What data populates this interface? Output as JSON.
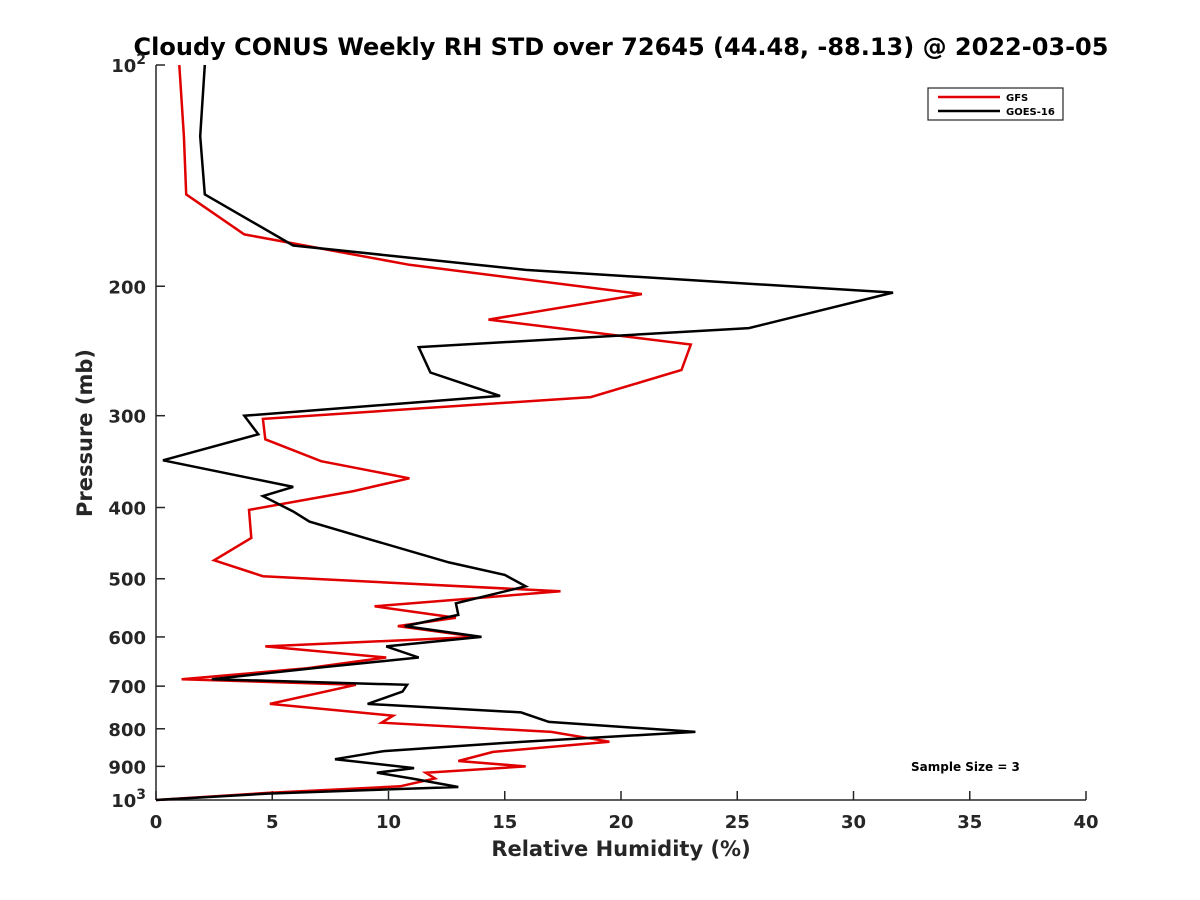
{
  "chart_data": {
    "type": "line",
    "title": "Cloudy CONUS Weekly RH STD over 72645 (44.48, -88.13) @ 2022-03-05",
    "xlabel": "Relative Humidity (%)",
    "ylabel": "Pressure (mb)",
    "xlim": [
      0,
      40
    ],
    "ylim": [
      100,
      1000
    ],
    "y_scale": "log",
    "y_reversed": true,
    "x_ticks": [
      "0",
      "5",
      "10",
      "15",
      "20",
      "25",
      "30",
      "35",
      "40"
    ],
    "y_ticks": [
      {
        "value": 100,
        "base": "10",
        "exp": "2"
      },
      {
        "value": 200,
        "label": "200"
      },
      {
        "value": 300,
        "label": "300"
      },
      {
        "value": 400,
        "label": "400"
      },
      {
        "value": 500,
        "label": "500"
      },
      {
        "value": 600,
        "label": "600"
      },
      {
        "value": 700,
        "label": "700"
      },
      {
        "value": 800,
        "label": "800"
      },
      {
        "value": 900,
        "label": "900"
      },
      {
        "value": 1000,
        "base": "10",
        "exp": "3"
      }
    ],
    "legend_position": "top-right",
    "grid": false,
    "annotation": "Sample Size = 3",
    "series": [
      {
        "name": "GFS",
        "color": "#e00000",
        "points": [
          [
            1.0,
            100
          ],
          [
            1.2,
            125
          ],
          [
            1.3,
            150
          ],
          [
            3.8,
            170
          ],
          [
            10.9,
            187
          ],
          [
            20.9,
            205
          ],
          [
            14.3,
            222
          ],
          [
            23.0,
            240
          ],
          [
            22.6,
            260
          ],
          [
            18.7,
            283
          ],
          [
            4.6,
            303
          ],
          [
            4.7,
            323
          ],
          [
            7.1,
            346
          ],
          [
            10.9,
            365
          ],
          [
            8.5,
            380
          ],
          [
            4.0,
            403
          ],
          [
            4.1,
            440
          ],
          [
            2.5,
            472
          ],
          [
            4.6,
            496
          ],
          [
            17.4,
            520
          ],
          [
            9.4,
            545
          ],
          [
            12.9,
            565
          ],
          [
            10.4,
            580
          ],
          [
            13.8,
            600
          ],
          [
            4.7,
            618
          ],
          [
            9.9,
            640
          ],
          [
            6.5,
            662
          ],
          [
            1.1,
            685
          ],
          [
            8.6,
            697
          ],
          [
            4.9,
            740
          ],
          [
            10.2,
            768
          ],
          [
            9.7,
            785
          ],
          [
            17.0,
            808
          ],
          [
            19.5,
            833
          ],
          [
            14.5,
            860
          ],
          [
            13.0,
            885
          ],
          [
            15.9,
            900
          ],
          [
            11.6,
            918
          ],
          [
            12.0,
            935
          ],
          [
            10.5,
            958
          ],
          [
            4.8,
            978
          ],
          [
            0.0,
            1000
          ]
        ]
      },
      {
        "name": "GOES-16",
        "color": "#000000",
        "points": [
          [
            2.1,
            100
          ],
          [
            1.9,
            125
          ],
          [
            2.1,
            150
          ],
          [
            5.9,
            176
          ],
          [
            15.9,
            190
          ],
          [
            31.7,
            204
          ],
          [
            25.5,
            228
          ],
          [
            11.3,
            242
          ],
          [
            11.8,
            262
          ],
          [
            14.8,
            282
          ],
          [
            3.8,
            300
          ],
          [
            4.4,
            318
          ],
          [
            0.3,
            345
          ],
          [
            5.9,
            375
          ],
          [
            4.6,
            386
          ],
          [
            5.9,
            405
          ],
          [
            6.6,
            418
          ],
          [
            9.2,
            442
          ],
          [
            12.6,
            475
          ],
          [
            15.0,
            494
          ],
          [
            15.9,
            512
          ],
          [
            12.9,
            540
          ],
          [
            13.0,
            560
          ],
          [
            10.7,
            580
          ],
          [
            14.0,
            600
          ],
          [
            9.9,
            618
          ],
          [
            11.3,
            640
          ],
          [
            7.1,
            660
          ],
          [
            2.4,
            685
          ],
          [
            10.8,
            697
          ],
          [
            10.6,
            712
          ],
          [
            9.1,
            740
          ],
          [
            15.7,
            760
          ],
          [
            16.9,
            783
          ],
          [
            23.2,
            808
          ],
          [
            15.8,
            833
          ],
          [
            9.8,
            858
          ],
          [
            7.7,
            880
          ],
          [
            11.1,
            905
          ],
          [
            9.5,
            918
          ],
          [
            11.0,
            935
          ],
          [
            13.0,
            960
          ],
          [
            4.8,
            980
          ],
          [
            0.0,
            1000
          ]
        ]
      }
    ]
  }
}
